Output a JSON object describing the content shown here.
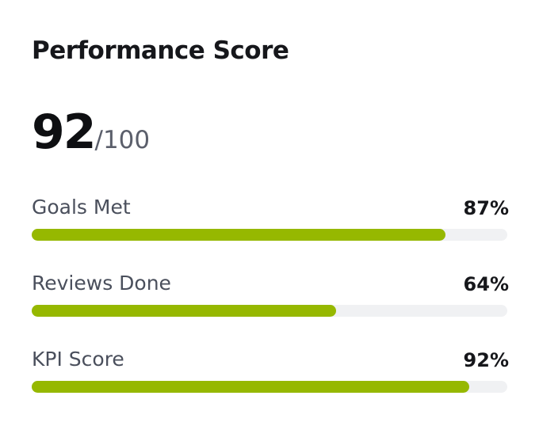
{
  "card": {
    "title": "Performance Score",
    "score": "92",
    "score_suffix": "/100",
    "scale": [
      0,
      100
    ],
    "bar_color": "#96b800",
    "track_color": "#f0f1f3",
    "metrics": [
      {
        "label": "Goals Met",
        "value": 87,
        "value_label": "87%"
      },
      {
        "label": "Reviews Done",
        "value": 64,
        "value_label": "64%"
      },
      {
        "label": "KPI Score",
        "value": 92,
        "value_label": "92%"
      }
    ]
  }
}
